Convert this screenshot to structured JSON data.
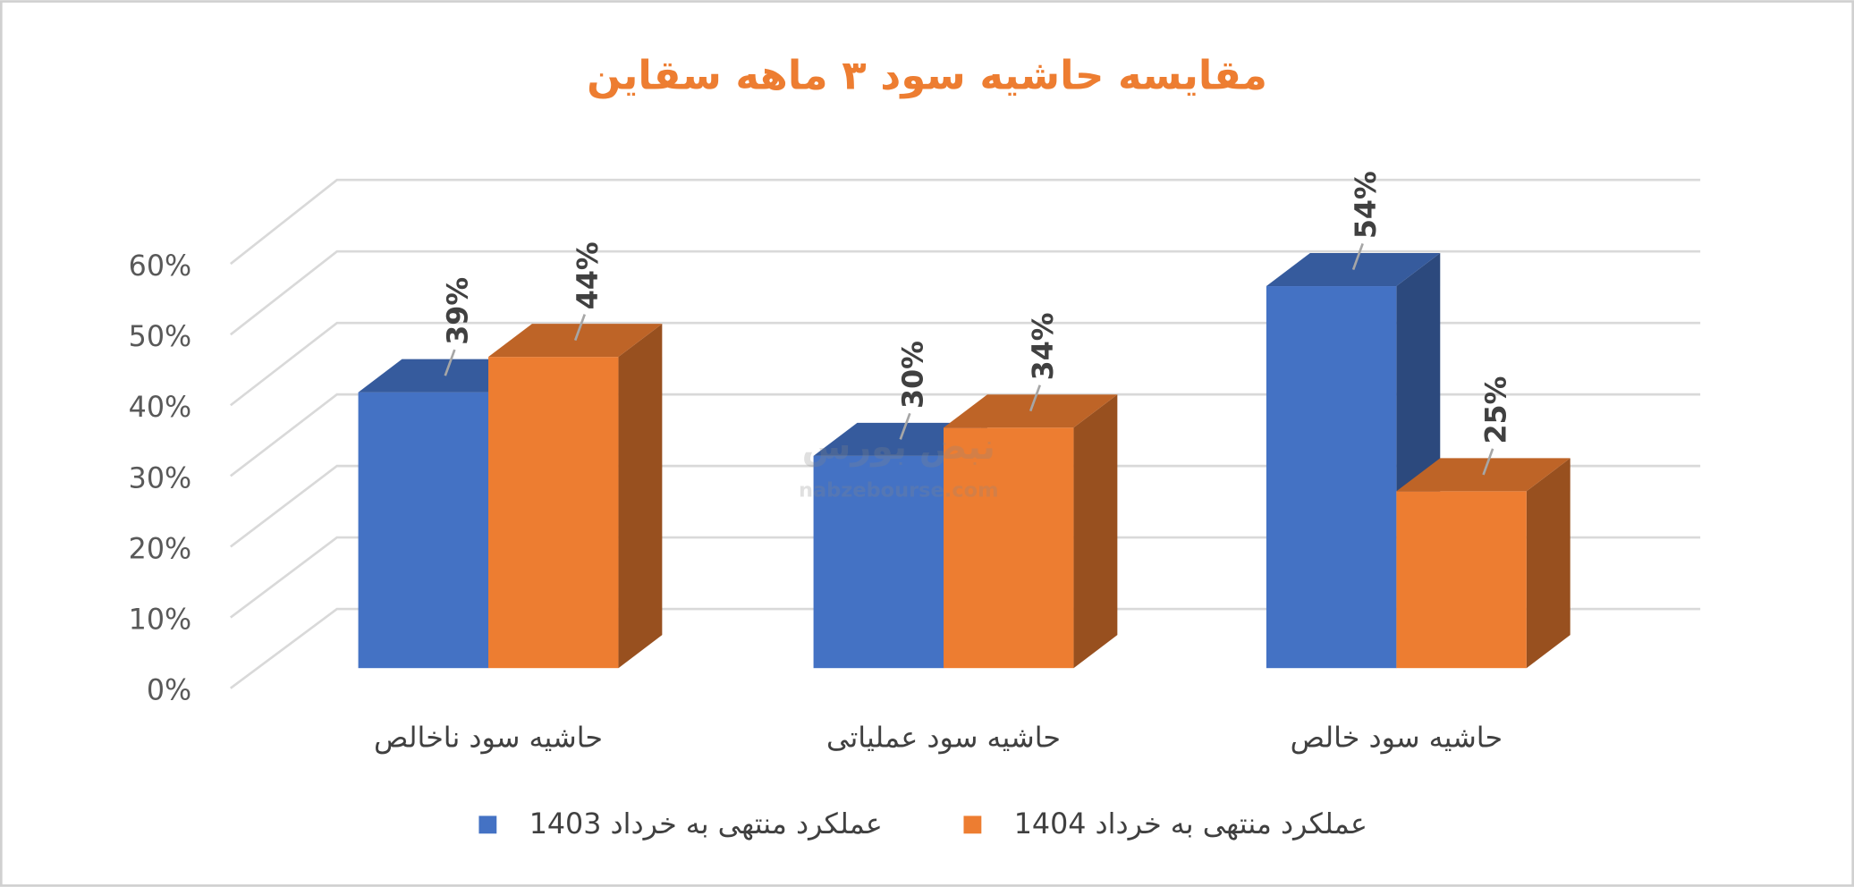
{
  "chart_data": {
    "type": "bar3d",
    "title": "مقایسه حاشیه سود ۳ ماهه سقاین",
    "categories": [
      "حاشیه سود ناخالص",
      "حاشیه سود عملیاتی",
      "حاشیه سود خالص"
    ],
    "series": [
      {
        "name": "عملکرد منتهی به خرداد 1403",
        "color": "#4472c4",
        "values": [
          39,
          30,
          54
        ],
        "value_labels": [
          "39%",
          "30%",
          "54%"
        ]
      },
      {
        "name": "عملکرد منتهی به خرداد 1404",
        "color": "#ed7d31",
        "values": [
          44,
          34,
          25
        ],
        "value_labels": [
          "44%",
          "34%",
          "25%"
        ]
      }
    ],
    "ylim": [
      0,
      60
    ],
    "yticks": [
      {
        "value": 0,
        "label": "0%"
      },
      {
        "value": 10,
        "label": "10%"
      },
      {
        "value": 20,
        "label": "20%"
      },
      {
        "value": 30,
        "label": "30%"
      },
      {
        "value": 40,
        "label": "40%"
      },
      {
        "value": 50,
        "label": "50%"
      },
      {
        "value": 60,
        "label": "60%"
      }
    ],
    "grid": true,
    "legend": "bottom",
    "watermark": [
      "نبض بورس",
      "nabzebourse.com"
    ]
  }
}
